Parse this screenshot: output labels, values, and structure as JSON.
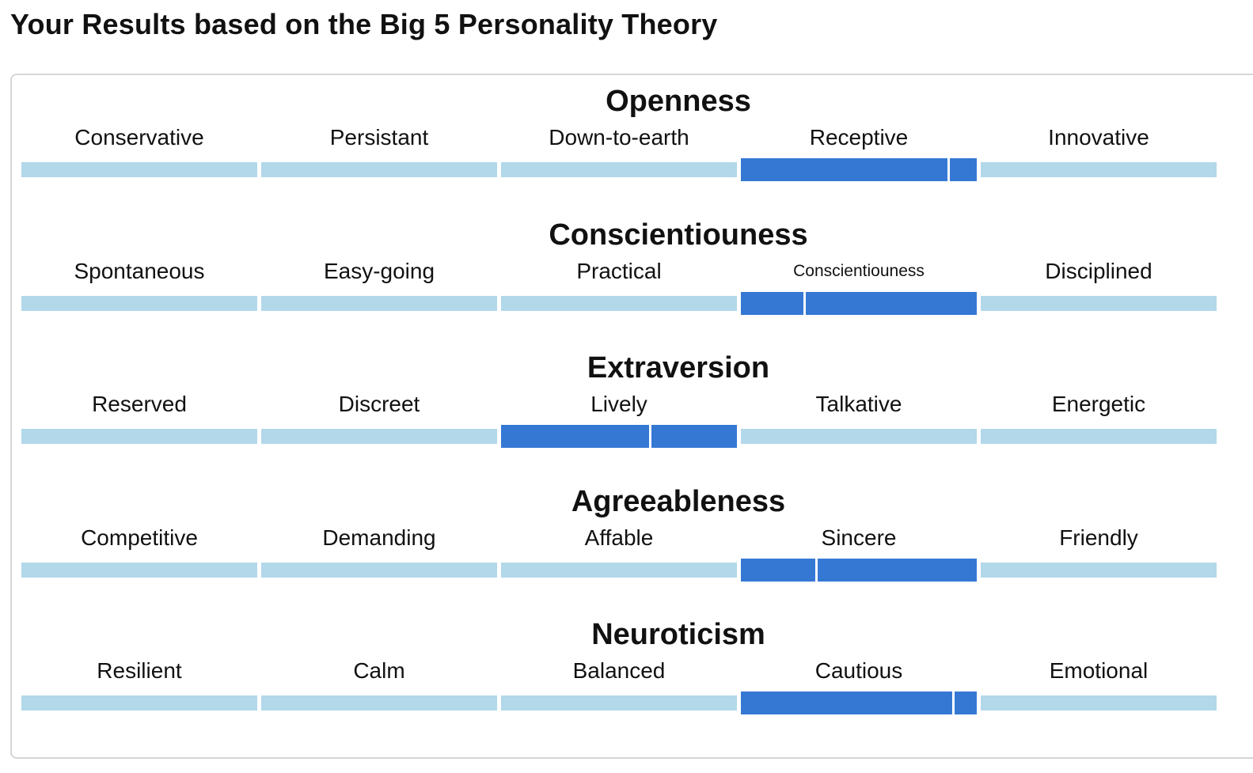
{
  "page_title": "Your Results based on the Big 5 Personality Theory",
  "colors": {
    "bar_inactive": "#b2d8ea",
    "bar_active": "#3578d4"
  },
  "traits": [
    {
      "name": "Openness",
      "levels": [
        "Conservative",
        "Persistant",
        "Down-to-earth",
        "Receptive",
        "Innovative"
      ],
      "active_index": 3,
      "position_in_level": 0.88
    },
    {
      "name": "Conscientiouness",
      "levels": [
        "Spontaneous",
        "Easy-going",
        "Practical",
        "Conscientiouness",
        "Disciplined"
      ],
      "active_index": 3,
      "position_in_level": 0.27
    },
    {
      "name": "Extraversion",
      "levels": [
        "Reserved",
        "Discreet",
        "Lively",
        "Talkative",
        "Energetic"
      ],
      "active_index": 2,
      "position_in_level": 0.63
    },
    {
      "name": "Agreeableness",
      "levels": [
        "Competitive",
        "Demanding",
        "Affable",
        "Sincere",
        "Friendly"
      ],
      "active_index": 3,
      "position_in_level": 0.32
    },
    {
      "name": "Neuroticism",
      "levels": [
        "Resilient",
        "Calm",
        "Balanced",
        "Cautious",
        "Emotional"
      ],
      "active_index": 3,
      "position_in_level": 0.9
    }
  ]
}
